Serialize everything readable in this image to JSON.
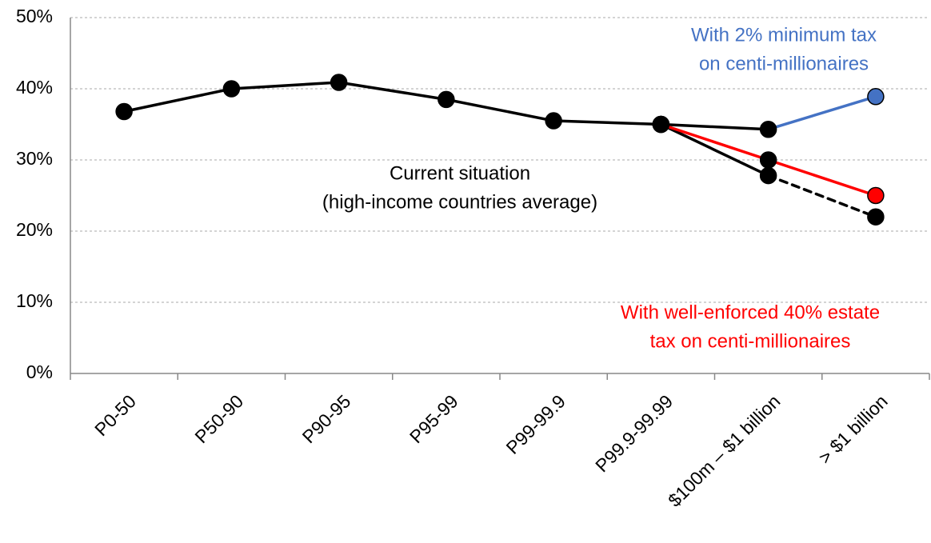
{
  "chart_data": {
    "type": "line",
    "categories": [
      "P0-50",
      "P50-90",
      "P90-95",
      "P95-99",
      "P99-99.9",
      "P99.9-99.99",
      "$100m – $1 billion",
      "> $1 billion"
    ],
    "ylim": [
      0,
      50
    ],
    "yticks": [
      {
        "value": 0,
        "label": "0%"
      },
      {
        "value": 10,
        "label": "10%"
      },
      {
        "value": 20,
        "label": "20%"
      },
      {
        "value": 30,
        "label": "30%"
      },
      {
        "value": 40,
        "label": "40%"
      },
      {
        "value": 50,
        "label": "50%"
      }
    ],
    "grid": true,
    "series": [
      {
        "name": [
          "Current situation",
          "(high-income countries average)"
        ],
        "color": "#000000",
        "values": [
          36.8,
          40,
          40.9,
          38.5,
          35.5,
          35,
          27.8,
          22
        ],
        "segment_colors": [
          "#000000",
          "#000000",
          "#000000",
          "#000000",
          "#000000",
          "#000000",
          "#000000"
        ],
        "point_colors": [
          "#000000",
          "#000000",
          "#000000",
          "#000000",
          "#000000",
          "#000000",
          "#000000",
          "#000000"
        ],
        "dashed_segments": [
          6
        ]
      },
      {
        "name": [
          "With 2% minimum tax",
          "on centi-millionaires"
        ],
        "color": "#4472c4",
        "values": [
          null,
          null,
          null,
          null,
          null,
          35,
          34.3,
          38.9
        ],
        "segment_colors": [
          null,
          null,
          null,
          null,
          null,
          "#000000",
          "#4472c4"
        ],
        "point_colors": [
          null,
          null,
          null,
          null,
          null,
          "#000000",
          "#000000",
          "#4472c4"
        ],
        "dashed_segments": []
      },
      {
        "name": [
          "With well-enforced 40% estate",
          "tax on centi-millionaires"
        ],
        "color": "#ff0000",
        "values": [
          null,
          null,
          null,
          null,
          null,
          35,
          30,
          25
        ],
        "segment_colors": [
          null,
          null,
          null,
          null,
          null,
          "#ff0000",
          "#ff0000"
        ],
        "point_colors": [
          null,
          null,
          null,
          null,
          null,
          "#000000",
          "#000000",
          "#ff0000"
        ],
        "dashed_segments": []
      }
    ]
  }
}
